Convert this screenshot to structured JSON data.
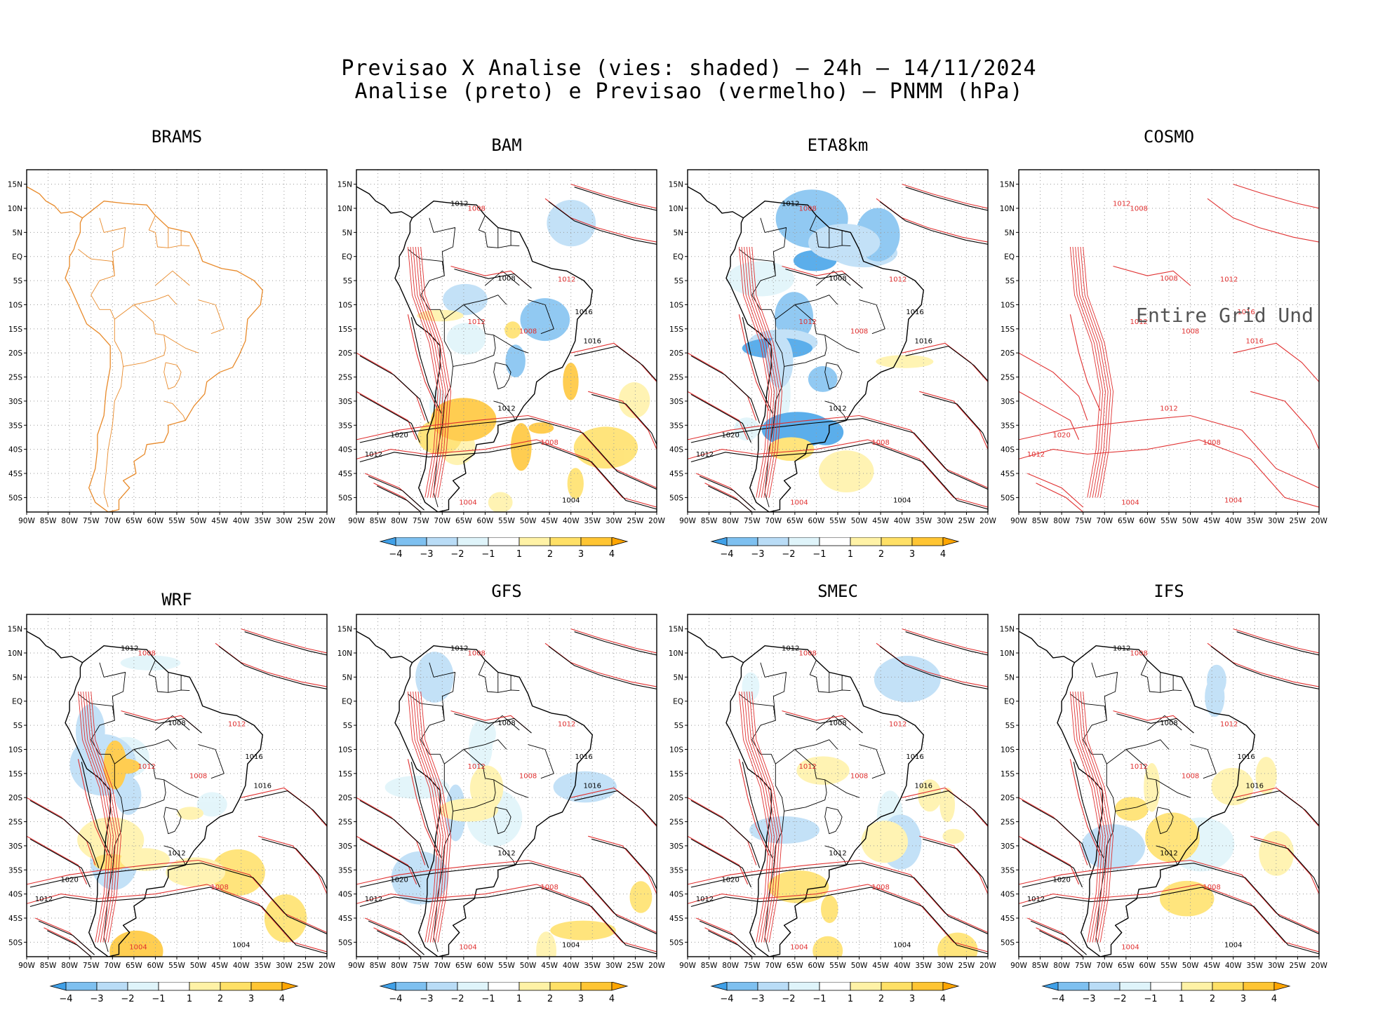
{
  "header": {
    "line1": "Previsao X Analise (vies: shaded) – 24h – 14/11/2024",
    "line2": "Analise (preto) e Previsao (vermelho) – PNMM (hPa)"
  },
  "axes": {
    "lon_labels": [
      "90W",
      "85W",
      "80W",
      "75W",
      "70W",
      "65W",
      "60W",
      "55W",
      "50W",
      "45W",
      "40W",
      "35W",
      "30W",
      "25W",
      "20W"
    ],
    "lat_labels": [
      "15N",
      "10N",
      "5N",
      "EQ",
      "5S",
      "10S",
      "15S",
      "20S",
      "25S",
      "30S",
      "35S",
      "40S",
      "45S",
      "50S"
    ]
  },
  "colorbar": {
    "labels": [
      "−4",
      "−3",
      "−2",
      "−1",
      "1",
      "2",
      "3",
      "4"
    ],
    "colors": [
      "#3fa0e8",
      "#7ec0f0",
      "#b9dcf6",
      "#dff4fa",
      "#ffffff",
      "#fff2a6",
      "#ffe066",
      "#ffc533",
      "#ffa500"
    ]
  },
  "colors": {
    "analysis": "#000000",
    "forecast": "#e03030",
    "map_orange": "#e88a2a"
  },
  "panels": [
    {
      "id": "brams",
      "title": "BRAMS",
      "colorbar": false,
      "overlay": "",
      "contours": []
    },
    {
      "id": "bam",
      "title": "BAM",
      "colorbar": true,
      "overlay": "",
      "contours": [
        "1012",
        "1008",
        "1008",
        "1012",
        "1016",
        "1012",
        "1008",
        "1016",
        "1012",
        "1020",
        "1012",
        "1008",
        "1004",
        "1004"
      ]
    },
    {
      "id": "eta8km",
      "title": "ETA8km",
      "colorbar": true,
      "overlay": "",
      "contours": [
        "1012",
        "1008",
        "1008",
        "1012",
        "1016",
        "1012",
        "1008",
        "1016",
        "1012",
        "1020",
        "1012",
        "1008",
        "1004",
        "1004"
      ]
    },
    {
      "id": "cosmo",
      "title": "COSMO",
      "colorbar": false,
      "overlay": "Entire Grid Und",
      "contours": [
        "1012",
        "1008",
        "1008",
        "1012",
        "1016",
        "1012",
        "1008",
        "1016",
        "1012",
        "1020",
        "1012",
        "1008",
        "1004",
        "1004"
      ]
    },
    {
      "id": "wrf",
      "title": "WRF",
      "colorbar": true,
      "overlay": "",
      "contours": [
        "1012",
        "1008",
        "1008",
        "1012",
        "1016",
        "1012",
        "1008",
        "1016",
        "1012",
        "1020",
        "1012",
        "1008",
        "1004",
        "1004"
      ]
    },
    {
      "id": "gfs",
      "title": "GFS",
      "colorbar": true,
      "overlay": "",
      "contours": [
        "1012",
        "1008",
        "1008",
        "1012",
        "1016",
        "1012",
        "1008",
        "1016",
        "1012",
        "1020",
        "1012",
        "1008",
        "1004",
        "1004"
      ]
    },
    {
      "id": "smec",
      "title": "SMEC",
      "colorbar": true,
      "overlay": "",
      "contours": [
        "1012",
        "1008",
        "1008",
        "1012",
        "1016",
        "1012",
        "1008",
        "1016",
        "1012",
        "1020",
        "1012",
        "1008",
        "1004",
        "1004"
      ]
    },
    {
      "id": "ifs",
      "title": "IFS",
      "colorbar": true,
      "overlay": "",
      "contours": [
        "1012",
        "1008",
        "1008",
        "1012",
        "1016",
        "1012",
        "1008",
        "1016",
        "1012",
        "1020",
        "1012",
        "1008",
        "1004",
        "1004"
      ]
    }
  ]
}
